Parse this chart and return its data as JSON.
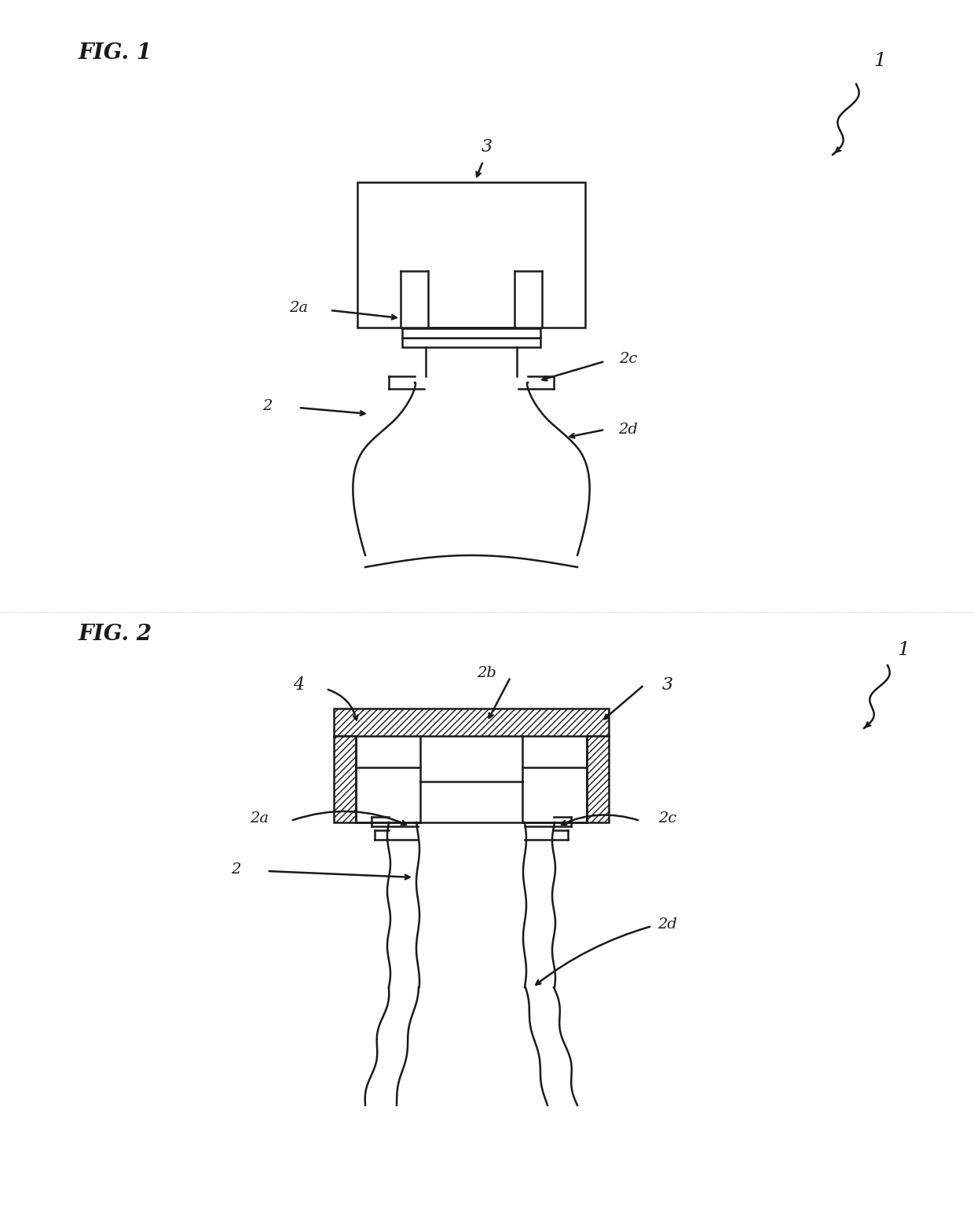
{
  "fig_width": 12.4,
  "fig_height": 15.57,
  "bg_color": "#ffffff",
  "line_color": "#1a1a1a",
  "hatch_color": "#1a1a1a",
  "fig1_label": "FIG. 1",
  "fig2_label": "FIG. 2",
  "label_1": "1",
  "label_2": "2",
  "label_2a": "2a",
  "label_2b": "2b",
  "label_2c": "2c",
  "label_2d": "2d",
  "label_3": "3",
  "label_4": "4"
}
